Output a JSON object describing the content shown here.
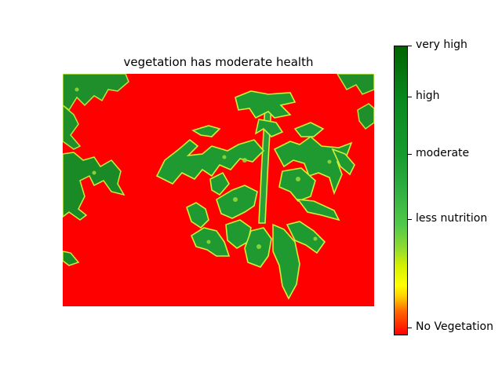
{
  "title": "vegetation has moderate health",
  "image": {
    "description_icon": "ndvi-plant-icon",
    "colors": {
      "background": "#ff0000",
      "leaf_dark": "#0a7a1a",
      "leaf_mid": "#2fa03a",
      "leaf_light": "#9adc3c",
      "leaf_edge": "#ffff00"
    }
  },
  "colorbar": {
    "labels": [
      "very high",
      "high",
      "moderate",
      "less nutrition",
      "No Vegetation"
    ]
  }
}
